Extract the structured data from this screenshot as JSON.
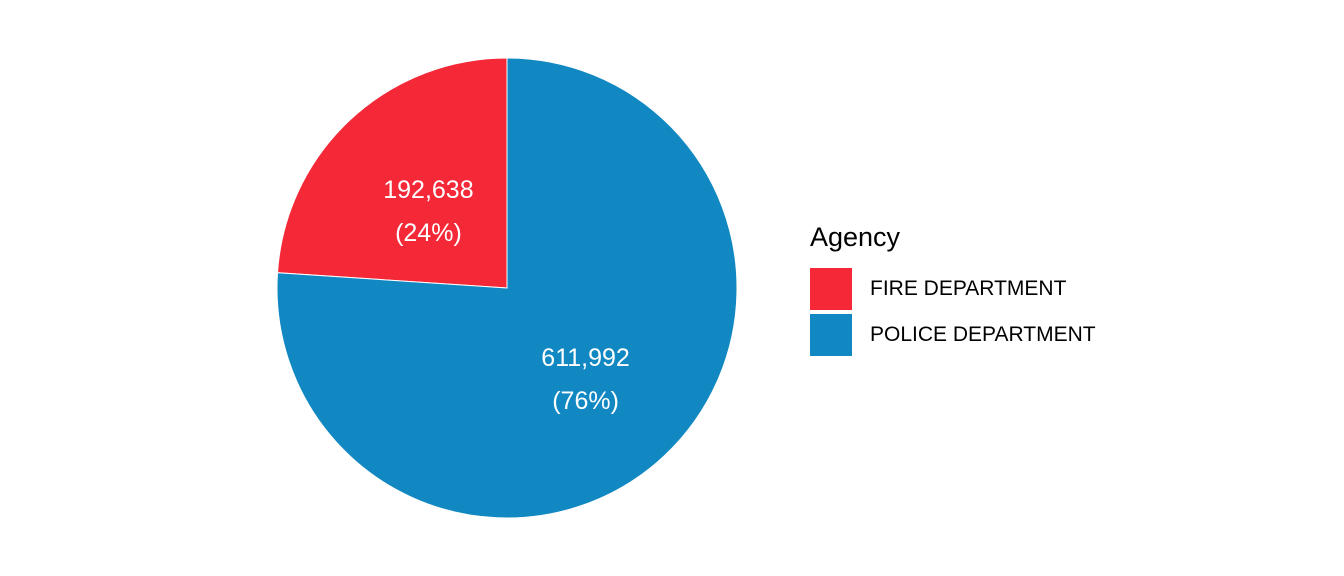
{
  "chart_data": {
    "type": "pie",
    "legend_title": "Agency",
    "legend_position": "right",
    "slices": [
      {
        "name": "FIRE DEPARTMENT",
        "value": 192638,
        "value_label": "192,638",
        "percent_label": "(24%)",
        "color": "#f42837"
      },
      {
        "name": "POLICE DEPARTMENT",
        "value": 611992,
        "value_label": "611,992",
        "percent_label": "(76%)",
        "color": "#1188c2"
      }
    ]
  }
}
